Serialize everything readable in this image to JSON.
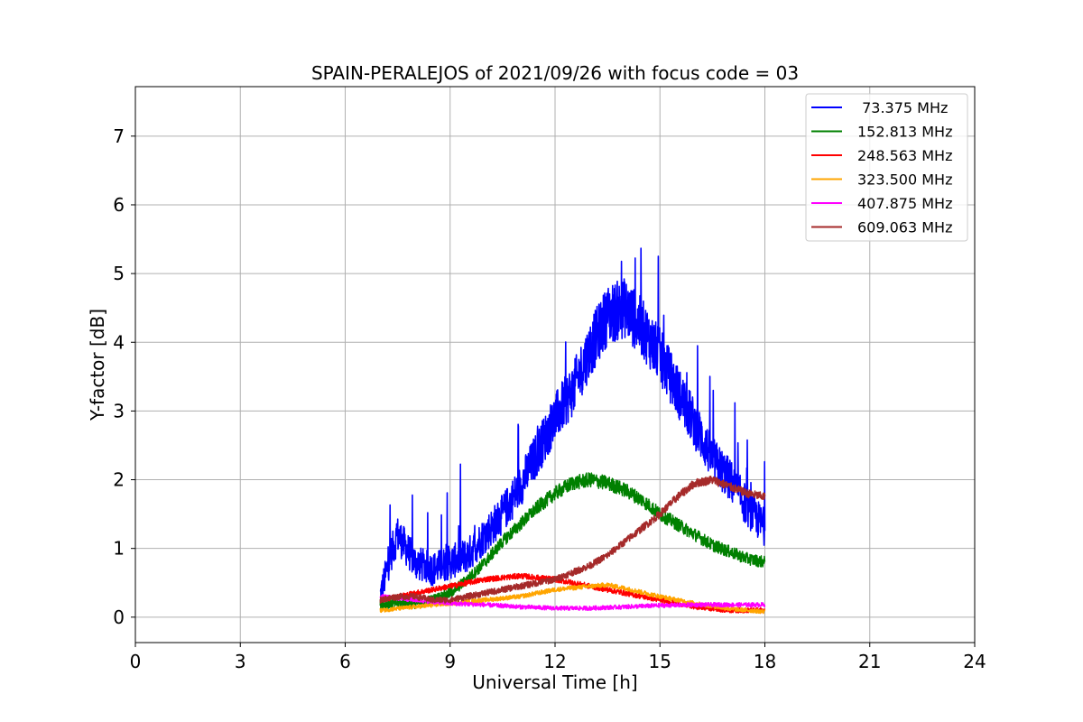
{
  "chart_data": {
    "type": "line",
    "title": "SPAIN-PERALEJOS of 2021/09/26 with focus code = 03",
    "xlabel": "Universal Time [h]",
    "ylabel": "Y-factor [dB]",
    "xlim": [
      0,
      24
    ],
    "ylim": [
      -0.37,
      7.72
    ],
    "xticks": [
      0,
      3,
      6,
      9,
      12,
      15,
      18,
      21,
      24
    ],
    "xtick_labels": [
      "0",
      "3",
      "6",
      "9",
      "12",
      "15",
      "18",
      "21",
      "24"
    ],
    "yticks": [
      0,
      1,
      2,
      3,
      4,
      5,
      6,
      7
    ],
    "ytick_labels": [
      "0",
      "1",
      "2",
      "3",
      "4",
      "5",
      "6",
      "7"
    ],
    "grid": true,
    "legend_position": "top-right",
    "series": [
      {
        "name": " 73.375 MHz",
        "color": "#0000ff",
        "x": [
          7.0,
          7.3,
          7.5,
          8.0,
          8.5,
          9.0,
          9.5,
          10.0,
          10.5,
          11.0,
          11.5,
          12.0,
          12.5,
          13.0,
          13.5,
          14.0,
          14.5,
          15.0,
          15.5,
          16.0,
          16.5,
          17.0,
          17.5,
          18.0
        ],
        "y": [
          0.3,
          0.9,
          1.2,
          0.8,
          0.7,
          0.8,
          0.9,
          1.2,
          1.5,
          1.9,
          2.4,
          2.9,
          3.3,
          3.9,
          4.4,
          4.5,
          4.2,
          3.8,
          3.3,
          2.8,
          2.3,
          2.0,
          1.6,
          1.3
        ],
        "noise": 0.35
      },
      {
        "name": "152.813 MHz",
        "color": "#008000",
        "x": [
          7.0,
          7.5,
          8.0,
          8.5,
          9.0,
          9.5,
          10.0,
          10.5,
          11.0,
          11.5,
          12.0,
          12.5,
          13.0,
          13.5,
          14.0,
          14.5,
          15.0,
          15.5,
          16.0,
          16.5,
          17.0,
          17.5,
          18.0
        ],
        "y": [
          0.2,
          0.2,
          0.2,
          0.25,
          0.35,
          0.55,
          0.8,
          1.1,
          1.35,
          1.6,
          1.8,
          1.95,
          2.0,
          1.95,
          1.85,
          1.7,
          1.5,
          1.35,
          1.2,
          1.05,
          0.95,
          0.85,
          0.8
        ],
        "noise": 0.12
      },
      {
        "name": "248.563 MHz",
        "color": "#ff0000",
        "x": [
          7.0,
          8.0,
          9.0,
          10.0,
          11.0,
          12.0,
          13.0,
          14.0,
          15.0,
          16.0,
          17.0,
          18.0
        ],
        "y": [
          0.25,
          0.35,
          0.45,
          0.55,
          0.6,
          0.55,
          0.45,
          0.35,
          0.25,
          0.15,
          0.1,
          0.1
        ],
        "noise": 0.06
      },
      {
        "name": "323.500 MHz",
        "color": "#ffa500",
        "x": [
          7.0,
          8.0,
          9.0,
          10.0,
          11.0,
          12.0,
          13.0,
          13.5,
          14.0,
          15.0,
          16.0,
          17.0,
          18.0
        ],
        "y": [
          0.1,
          0.15,
          0.2,
          0.25,
          0.3,
          0.4,
          0.45,
          0.47,
          0.42,
          0.3,
          0.2,
          0.12,
          0.08
        ],
        "noise": 0.05
      },
      {
        "name": "407.875 MHz",
        "color": "#ff00ff",
        "x": [
          7.0,
          8.0,
          9.0,
          10.0,
          11.0,
          12.0,
          13.0,
          14.0,
          15.0,
          16.0,
          17.0,
          18.0
        ],
        "y": [
          0.3,
          0.25,
          0.2,
          0.18,
          0.15,
          0.13,
          0.13,
          0.15,
          0.17,
          0.18,
          0.18,
          0.18
        ],
        "noise": 0.05
      },
      {
        "name": "609.063 MHz",
        "color": "#a52a2a",
        "x": [
          7.0,
          7.5,
          8.0,
          8.5,
          9.0,
          9.5,
          10.0,
          11.0,
          12.0,
          12.5,
          13.0,
          13.5,
          14.0,
          14.5,
          15.0,
          15.5,
          16.0,
          16.5,
          17.0,
          17.5,
          18.0
        ],
        "y": [
          0.25,
          0.3,
          0.3,
          0.25,
          0.25,
          0.3,
          0.35,
          0.45,
          0.55,
          0.65,
          0.75,
          0.9,
          1.1,
          1.3,
          1.5,
          1.75,
          1.95,
          2.0,
          1.9,
          1.8,
          1.75
        ],
        "noise": 0.07
      }
    ]
  }
}
